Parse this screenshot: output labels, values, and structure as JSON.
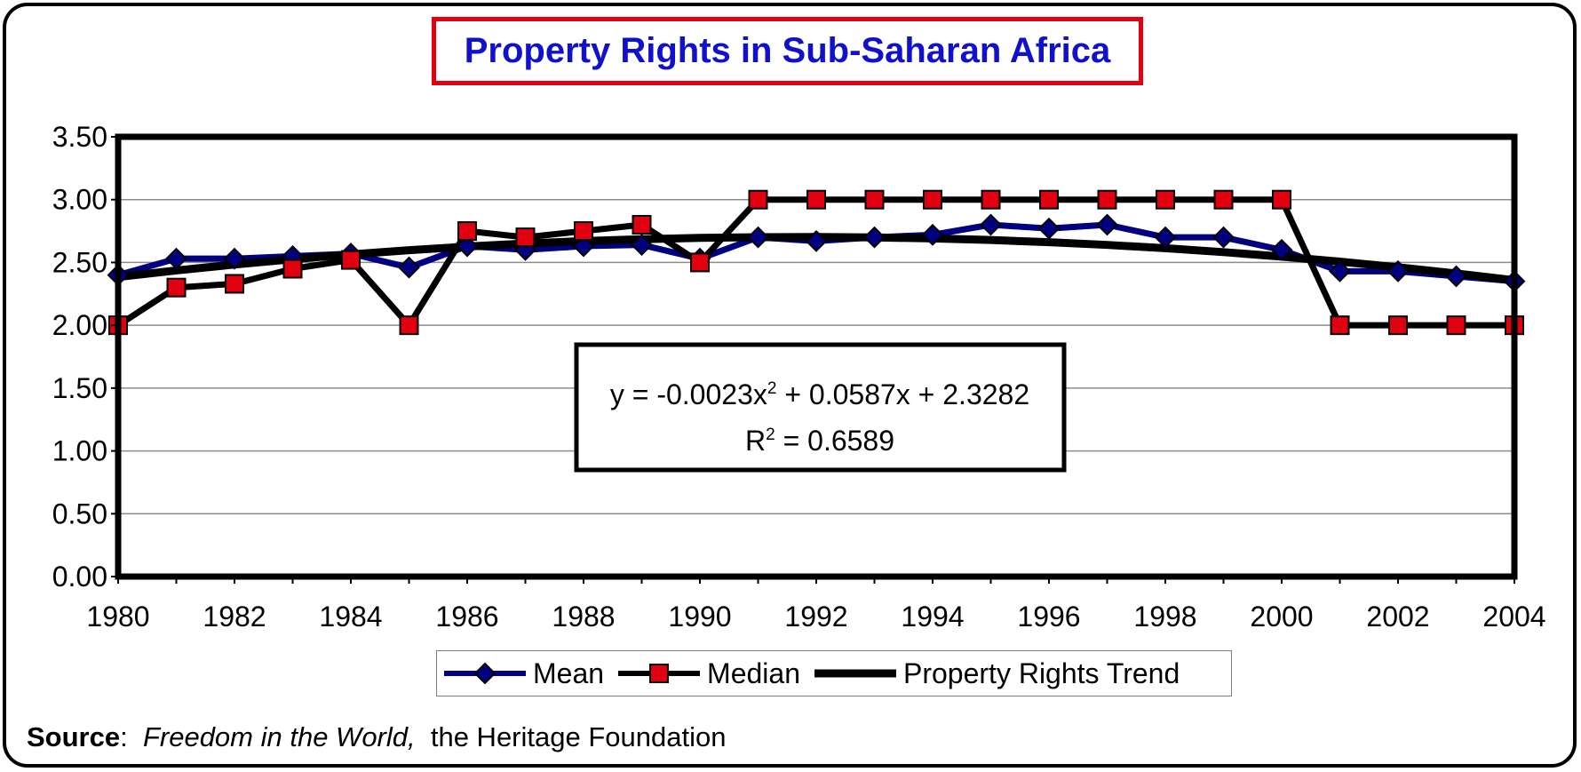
{
  "source": {
    "label": "Source",
    "sep": ":  ",
    "work": "Freedom in the World,",
    "rest": "  the Heritage Foundation"
  },
  "chart_data": {
    "type": "line",
    "title": "Property Rights in Sub-Saharan Africa",
    "xlabel": "",
    "ylabel": "",
    "x": [
      1980,
      1981,
      1982,
      1983,
      1984,
      1985,
      1986,
      1987,
      1988,
      1989,
      1990,
      1991,
      1992,
      1993,
      1994,
      1995,
      1996,
      1997,
      1998,
      1999,
      2000,
      2001,
      2002,
      2003,
      2004
    ],
    "x_tick_labels": [
      "1980",
      "1982",
      "1984",
      "1986",
      "1988",
      "1990",
      "1992",
      "1994",
      "1996",
      "1998",
      "2000",
      "2002",
      "2004"
    ],
    "y_tick_labels": [
      "0.00",
      "0.50",
      "1.00",
      "1.50",
      "2.00",
      "2.50",
      "3.00",
      "3.50"
    ],
    "xlim": [
      1980,
      2004
    ],
    "ylim": [
      0,
      3.5
    ],
    "grid": true,
    "legend_position": "bottom",
    "series": [
      {
        "name": "Mean",
        "color": "#000080",
        "marker": "diamond",
        "values": [
          2.4,
          2.53,
          2.53,
          2.55,
          2.57,
          2.46,
          2.63,
          2.6,
          2.63,
          2.64,
          2.53,
          2.7,
          2.67,
          2.7,
          2.72,
          2.8,
          2.77,
          2.8,
          2.7,
          2.7,
          2.6,
          2.43,
          2.43,
          2.39,
          2.35
        ]
      },
      {
        "name": "Median",
        "color": "#000000",
        "marker": "square",
        "marker_color": "#e00010",
        "values": [
          2.0,
          2.3,
          2.33,
          2.45,
          2.52,
          2.0,
          2.75,
          2.7,
          2.75,
          2.8,
          2.5,
          3.0,
          3.0,
          3.0,
          3.0,
          3.0,
          3.0,
          3.0,
          3.0,
          3.0,
          3.0,
          2.0,
          2.0,
          2.0,
          2.0
        ]
      },
      {
        "name": "Property Rights Trend",
        "color": "#000000",
        "marker": "none",
        "trend": {
          "type": "polynomial",
          "a": -0.0023,
          "b": 0.0587,
          "c": 2.3282
        },
        "values": [
          2.3846,
          2.4364,
          2.4836,
          2.5262,
          2.5642,
          2.5976,
          2.6264,
          2.6506,
          2.6702,
          2.6852,
          2.6956,
          2.7014,
          2.7026,
          2.6992,
          2.6912,
          2.6786,
          2.6614,
          2.6396,
          2.6132,
          2.5822,
          2.5466,
          2.5064,
          2.4616,
          2.4122,
          2.3582
        ]
      }
    ],
    "annotation": {
      "equation_prefix": "y = -0.0023x",
      "equation_exp": "2",
      "equation_suffix": " + 0.0587x + 2.3282",
      "r2_prefix": "R",
      "r2_exp": "2",
      "r2_suffix": " = 0.6589"
    }
  }
}
